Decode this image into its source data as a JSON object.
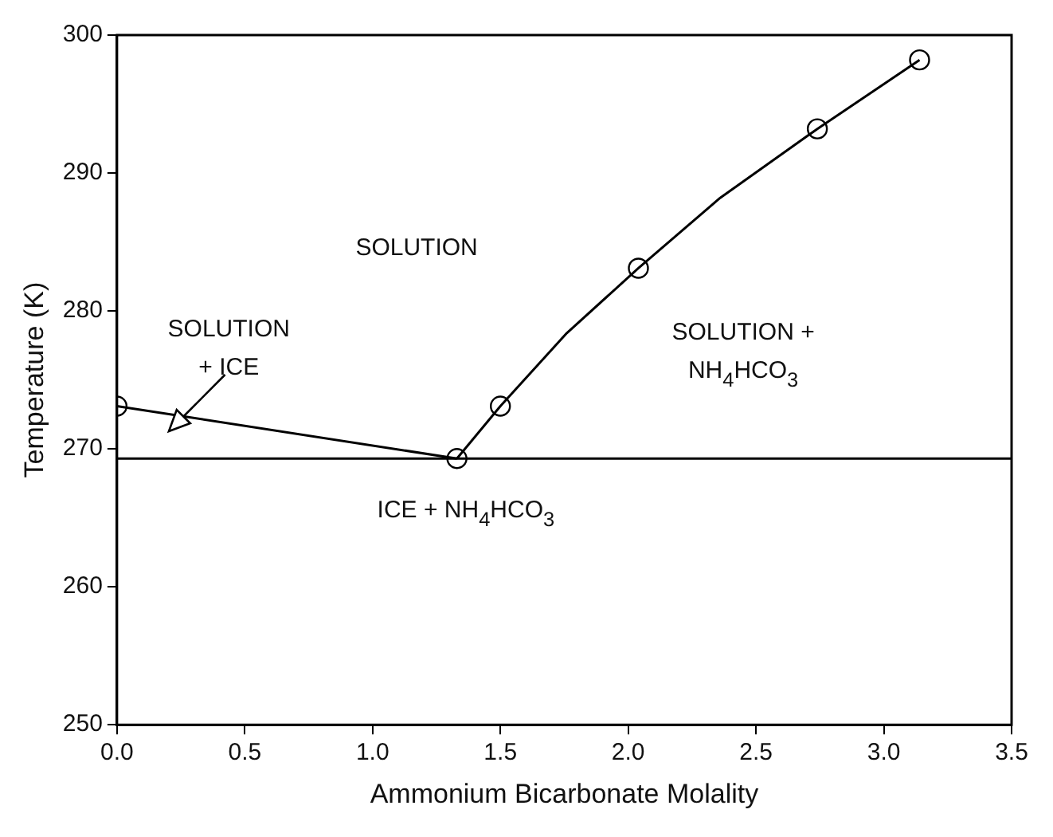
{
  "chart_data": {
    "type": "line",
    "xlabel": "Ammonium Bicarbonate Molality",
    "ylabel": "Temperature (K)",
    "xlim": [
      0,
      3.5
    ],
    "xticks": [
      {
        "value": 0,
        "label": "0.0"
      },
      0.5,
      {
        "value": 1,
        "label": "1.0"
      },
      1.5,
      {
        "value": 2,
        "label": "2.0"
      },
      2.5,
      {
        "value": 3,
        "label": "3.0"
      },
      3.5
    ],
    "ylim": [
      250,
      300
    ],
    "yticks": [
      250,
      260,
      270,
      280,
      290,
      300
    ],
    "grid": false,
    "legend": false,
    "series": [
      {
        "color": "#000000",
        "marker": "circle",
        "x": [
          0,
          1.33
        ],
        "values": [
          273.1,
          269.3
        ]
      },
      {
        "color": "#000000",
        "marker": "none",
        "x": [
          1.33,
          1.5,
          1.76,
          2.04,
          2.36,
          2.74,
          3.14
        ],
        "values": [
          269.3,
          273.1,
          278.4,
          283.1,
          288.2,
          293.2,
          298.2
        ]
      },
      {
        "type": "scatter",
        "color": "#000000",
        "marker": "circle",
        "x": [
          1.5,
          2.04,
          2.74,
          3.14
        ],
        "values": [
          273.1,
          283.1,
          293.2,
          298.2
        ]
      }
    ],
    "ref_lines": [
      {
        "axis": "y",
        "value": 269.3,
        "color": "#000000",
        "line_style": "solid"
      }
    ],
    "annotations": [
      "SOLUTION",
      "SOLUTION\n+ ICE",
      "SOLUTION +\nNH$_{4}$HCO$_{3}$",
      "ICE + NH$_{4}$HCO$_{3}$"
    ]
  }
}
